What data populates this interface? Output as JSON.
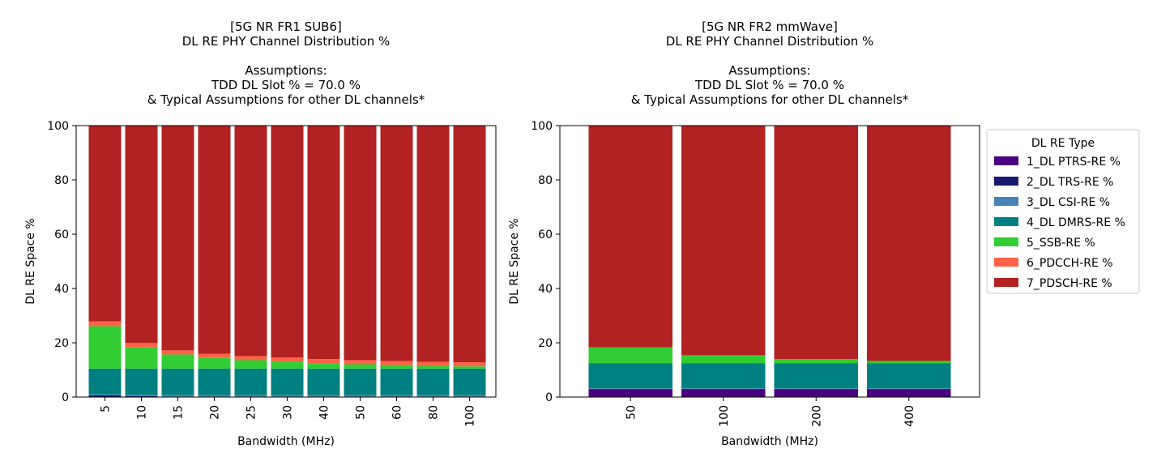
{
  "legend": {
    "title": "DL RE Type",
    "placement": "outside-right",
    "items": [
      {
        "name": "1_DL PTRS-RE %",
        "color": "#4b0082"
      },
      {
        "name": "2_DL TRS-RE %",
        "color": "#191970"
      },
      {
        "name": "3_DL CSI-RE %",
        "color": "#4682b4"
      },
      {
        "name": "4_DL DMRS-RE %",
        "color": "#008080"
      },
      {
        "name": "5_SSB-RE %",
        "color": "#32cd32"
      },
      {
        "name": "6_PDCCH-RE %",
        "color": "#ff6347"
      },
      {
        "name": "7_PDSCH-RE %",
        "color": "#b22222"
      }
    ]
  },
  "chart_data": [
    {
      "type": "bar",
      "stacked": true,
      "title": [
        "[5G NR FR1 SUB6]",
        "DL RE PHY Channel Distribution %",
        "",
        "Assumptions:",
        "TDD DL Slot % = 70.0 %",
        "& Typical Assumptions for other DL channels*"
      ],
      "xlabel": "Bandwidth (MHz)",
      "ylabel": "DL RE Space %",
      "ylim": [
        0,
        100
      ],
      "yticks": [
        0,
        20,
        40,
        60,
        80,
        100
      ],
      "grid": false,
      "categories": [
        "5",
        "10",
        "15",
        "20",
        "25",
        "30",
        "40",
        "50",
        "60",
        "80",
        "100"
      ],
      "series": [
        {
          "name": "1_DL PTRS-RE %",
          "values": [
            0,
            0,
            0,
            0,
            0,
            0,
            0,
            0,
            0,
            0,
            0
          ]
        },
        {
          "name": "2_DL TRS-RE %",
          "values": [
            0.6,
            0.3,
            0.2,
            0.2,
            0.2,
            0.2,
            0.2,
            0.2,
            0.2,
            0.2,
            0.2
          ]
        },
        {
          "name": "3_DL CSI-RE %",
          "values": [
            0.4,
            0.5,
            0.5,
            0.5,
            0.5,
            0.5,
            0.5,
            0.5,
            0.5,
            0.5,
            0.5
          ]
        },
        {
          "name": "4_DL DMRS-RE %",
          "values": [
            9.5,
            9.7,
            9.8,
            9.8,
            9.8,
            9.8,
            9.8,
            9.8,
            9.8,
            9.8,
            9.8
          ]
        },
        {
          "name": "5_SSB-RE %",
          "values": [
            15.6,
            7.8,
            5.2,
            3.9,
            3.1,
            2.6,
            2.0,
            1.6,
            1.3,
            1.0,
            0.8
          ]
        },
        {
          "name": "6_PDCCH-RE %",
          "values": [
            1.8,
            1.6,
            1.5,
            1.5,
            1.5,
            1.5,
            1.5,
            1.5,
            1.5,
            1.5,
            1.5
          ]
        },
        {
          "name": "7_PDSCH-RE %",
          "values": [
            72.1,
            80.1,
            82.8,
            84.1,
            84.9,
            85.4,
            86.0,
            86.4,
            86.7,
            87.0,
            87.2
          ]
        }
      ]
    },
    {
      "type": "bar",
      "stacked": true,
      "title": [
        "[5G NR FR2 mmWave]",
        "DL RE PHY Channel Distribution %",
        "",
        "Assumptions:",
        "TDD DL Slot % = 70.0 %",
        "& Typical Assumptions for other DL channels*"
      ],
      "xlabel": "Bandwidth (MHz)",
      "ylabel": "DL RE Space %",
      "ylim": [
        0,
        100
      ],
      "yticks": [
        0,
        20,
        40,
        60,
        80,
        100
      ],
      "grid": false,
      "categories": [
        "50",
        "100",
        "200",
        "400"
      ],
      "series": [
        {
          "name": "1_DL PTRS-RE %",
          "values": [
            2.8,
            2.8,
            2.8,
            2.8
          ]
        },
        {
          "name": "2_DL TRS-RE %",
          "values": [
            0.2,
            0.2,
            0.2,
            0.2
          ]
        },
        {
          "name": "3_DL CSI-RE %",
          "values": [
            0.2,
            0.2,
            0.2,
            0.2
          ]
        },
        {
          "name": "4_DL DMRS-RE %",
          "values": [
            9.3,
            9.3,
            9.3,
            9.3
          ]
        },
        {
          "name": "5_SSB-RE %",
          "values": [
            5.8,
            2.9,
            1.5,
            0.8
          ]
        },
        {
          "name": "6_PDCCH-RE %",
          "values": [
            0,
            0,
            0,
            0
          ]
        },
        {
          "name": "7_PDSCH-RE %",
          "values": [
            81.7,
            84.6,
            86.0,
            86.7
          ]
        }
      ]
    }
  ]
}
